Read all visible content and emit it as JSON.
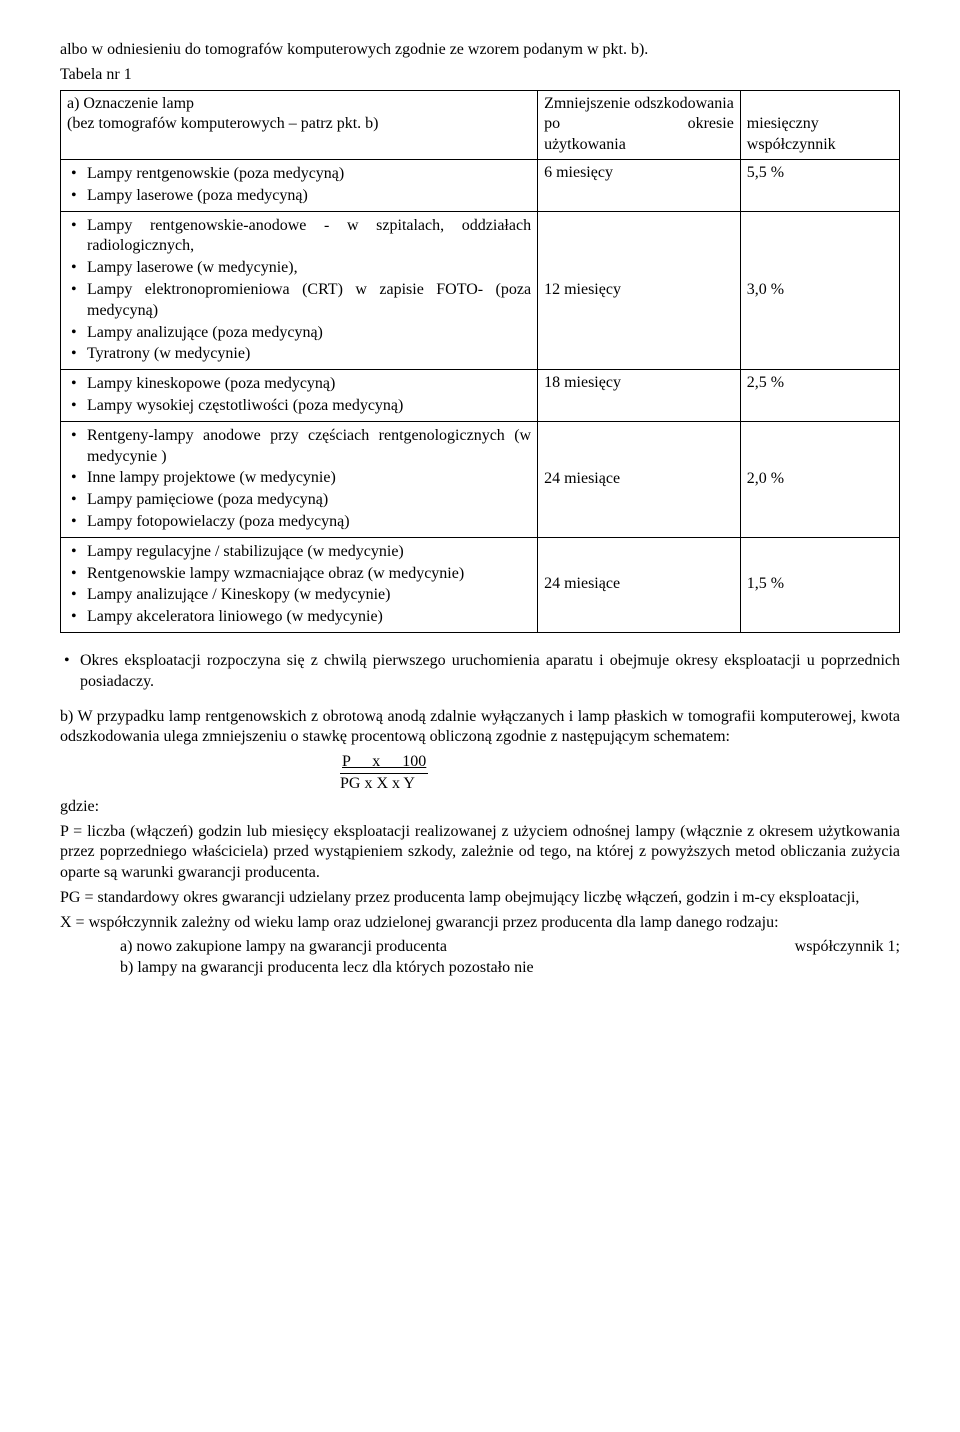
{
  "intro": "albo w odniesieniu do tomografów komputerowych zgodnie ze wzorem podanym w pkt. b).",
  "tabela_label": "Tabela nr 1",
  "header": {
    "colA_line1": "a) Oznaczenie lamp",
    "colA_line2": "(bez tomografów komputerowych – patrz pkt. b)",
    "colBC_top": "Zmniejszenie odszkodowania",
    "colB_po": "po",
    "colB_okresie": "okresie",
    "colB_line2": "użytkowania",
    "colC_line1": "miesięczny",
    "colC_line2": "współczynnik"
  },
  "rows": [
    {
      "items": [
        "Lampy rentgenowskie (poza medycyną)",
        "Lampy laserowe (poza medycyną)"
      ],
      "period": "6 miesięcy",
      "coef": "5,5 %"
    },
    {
      "items": [
        "Lampy rentgenowskie-anodowe - w szpitalach, oddziałach radiologicznych,",
        "Lampy laserowe (w medycynie),",
        "Lampy elektronopromieniowa (CRT) w zapisie FOTO- (poza medycyną)",
        "Lampy analizujące (poza medycyną)",
        "Tyratrony (w medycynie)"
      ],
      "period": "12 miesięcy",
      "coef": "3,0 %"
    },
    {
      "items": [
        "Lampy kineskopowe (poza medycyną)",
        "Lampy wysokiej częstotliwości (poza medycyną)"
      ],
      "period": "18 miesięcy",
      "coef": "2,5 %"
    },
    {
      "items": [
        "Rentgeny-lampy anodowe przy częściach rentgenologicznych (w medycynie )",
        "Inne lampy projektowe (w medycynie)",
        "Lampy pamięciowe (poza medycyną)",
        "Lampy fotopowielaczy (poza medycyną)"
      ],
      "period": "24 miesiące",
      "coef": "2,0 %"
    },
    {
      "items": [
        "Lampy regulacyjne / stabilizujące (w medycynie)",
        "Rentgenowskie lampy wzmacniające obraz (w medycynie)",
        "Lampy analizujące / Kineskopy (w medycynie)",
        "Lampy akceleratora liniowego (w medycynie)"
      ],
      "period": "24 miesiące",
      "coef": "1,5 %"
    }
  ],
  "note_bullet": "Okres eksploatacji rozpoczyna się z chwilą pierwszego uruchomienia aparatu i obejmuje okresy eksploatacji u poprzednich posiadaczy.",
  "para_b": "b) W przypadku lamp rentgenowskich z obrotową anodą zdalnie wyłączanych i lamp płaskich w tomografii komputerowej, kwota odszkodowania ulega zmniejszeniu o stawkę procentową obliczoną zgodnie z następującym schematem:",
  "formula_top": "P   x   100",
  "formula_bot": "PG  x  X  x  Y",
  "gdzie": "gdzie:",
  "defP": "P     =  liczba (włączeń) godzin lub miesięcy eksploatacji realizowanej z użyciem odnośnej lampy (włącznie z okresem użytkowania przez poprzedniego właściciela) przed wystąpieniem szkody, zależnie od tego, na której z powyższych metod obliczania zużycia oparte są warunki gwarancji producenta.",
  "defPG": "PG =   standardowy okres gwarancji udzielany przez producenta lamp obejmujący liczbę włączeń, godzin i m-cy eksploatacji,",
  "defX": "X  =   współczynnik zależny od wieku lamp oraz udzielonej gwarancji przez  producenta dla lamp danego rodzaju:",
  "subA_left": "a) nowo zakupione lampy na gwarancji producenta",
  "subA_right": "współczynnik 1;",
  "subB": "b) lampy na gwarancji producenta lecz dla których pozostało nie"
}
